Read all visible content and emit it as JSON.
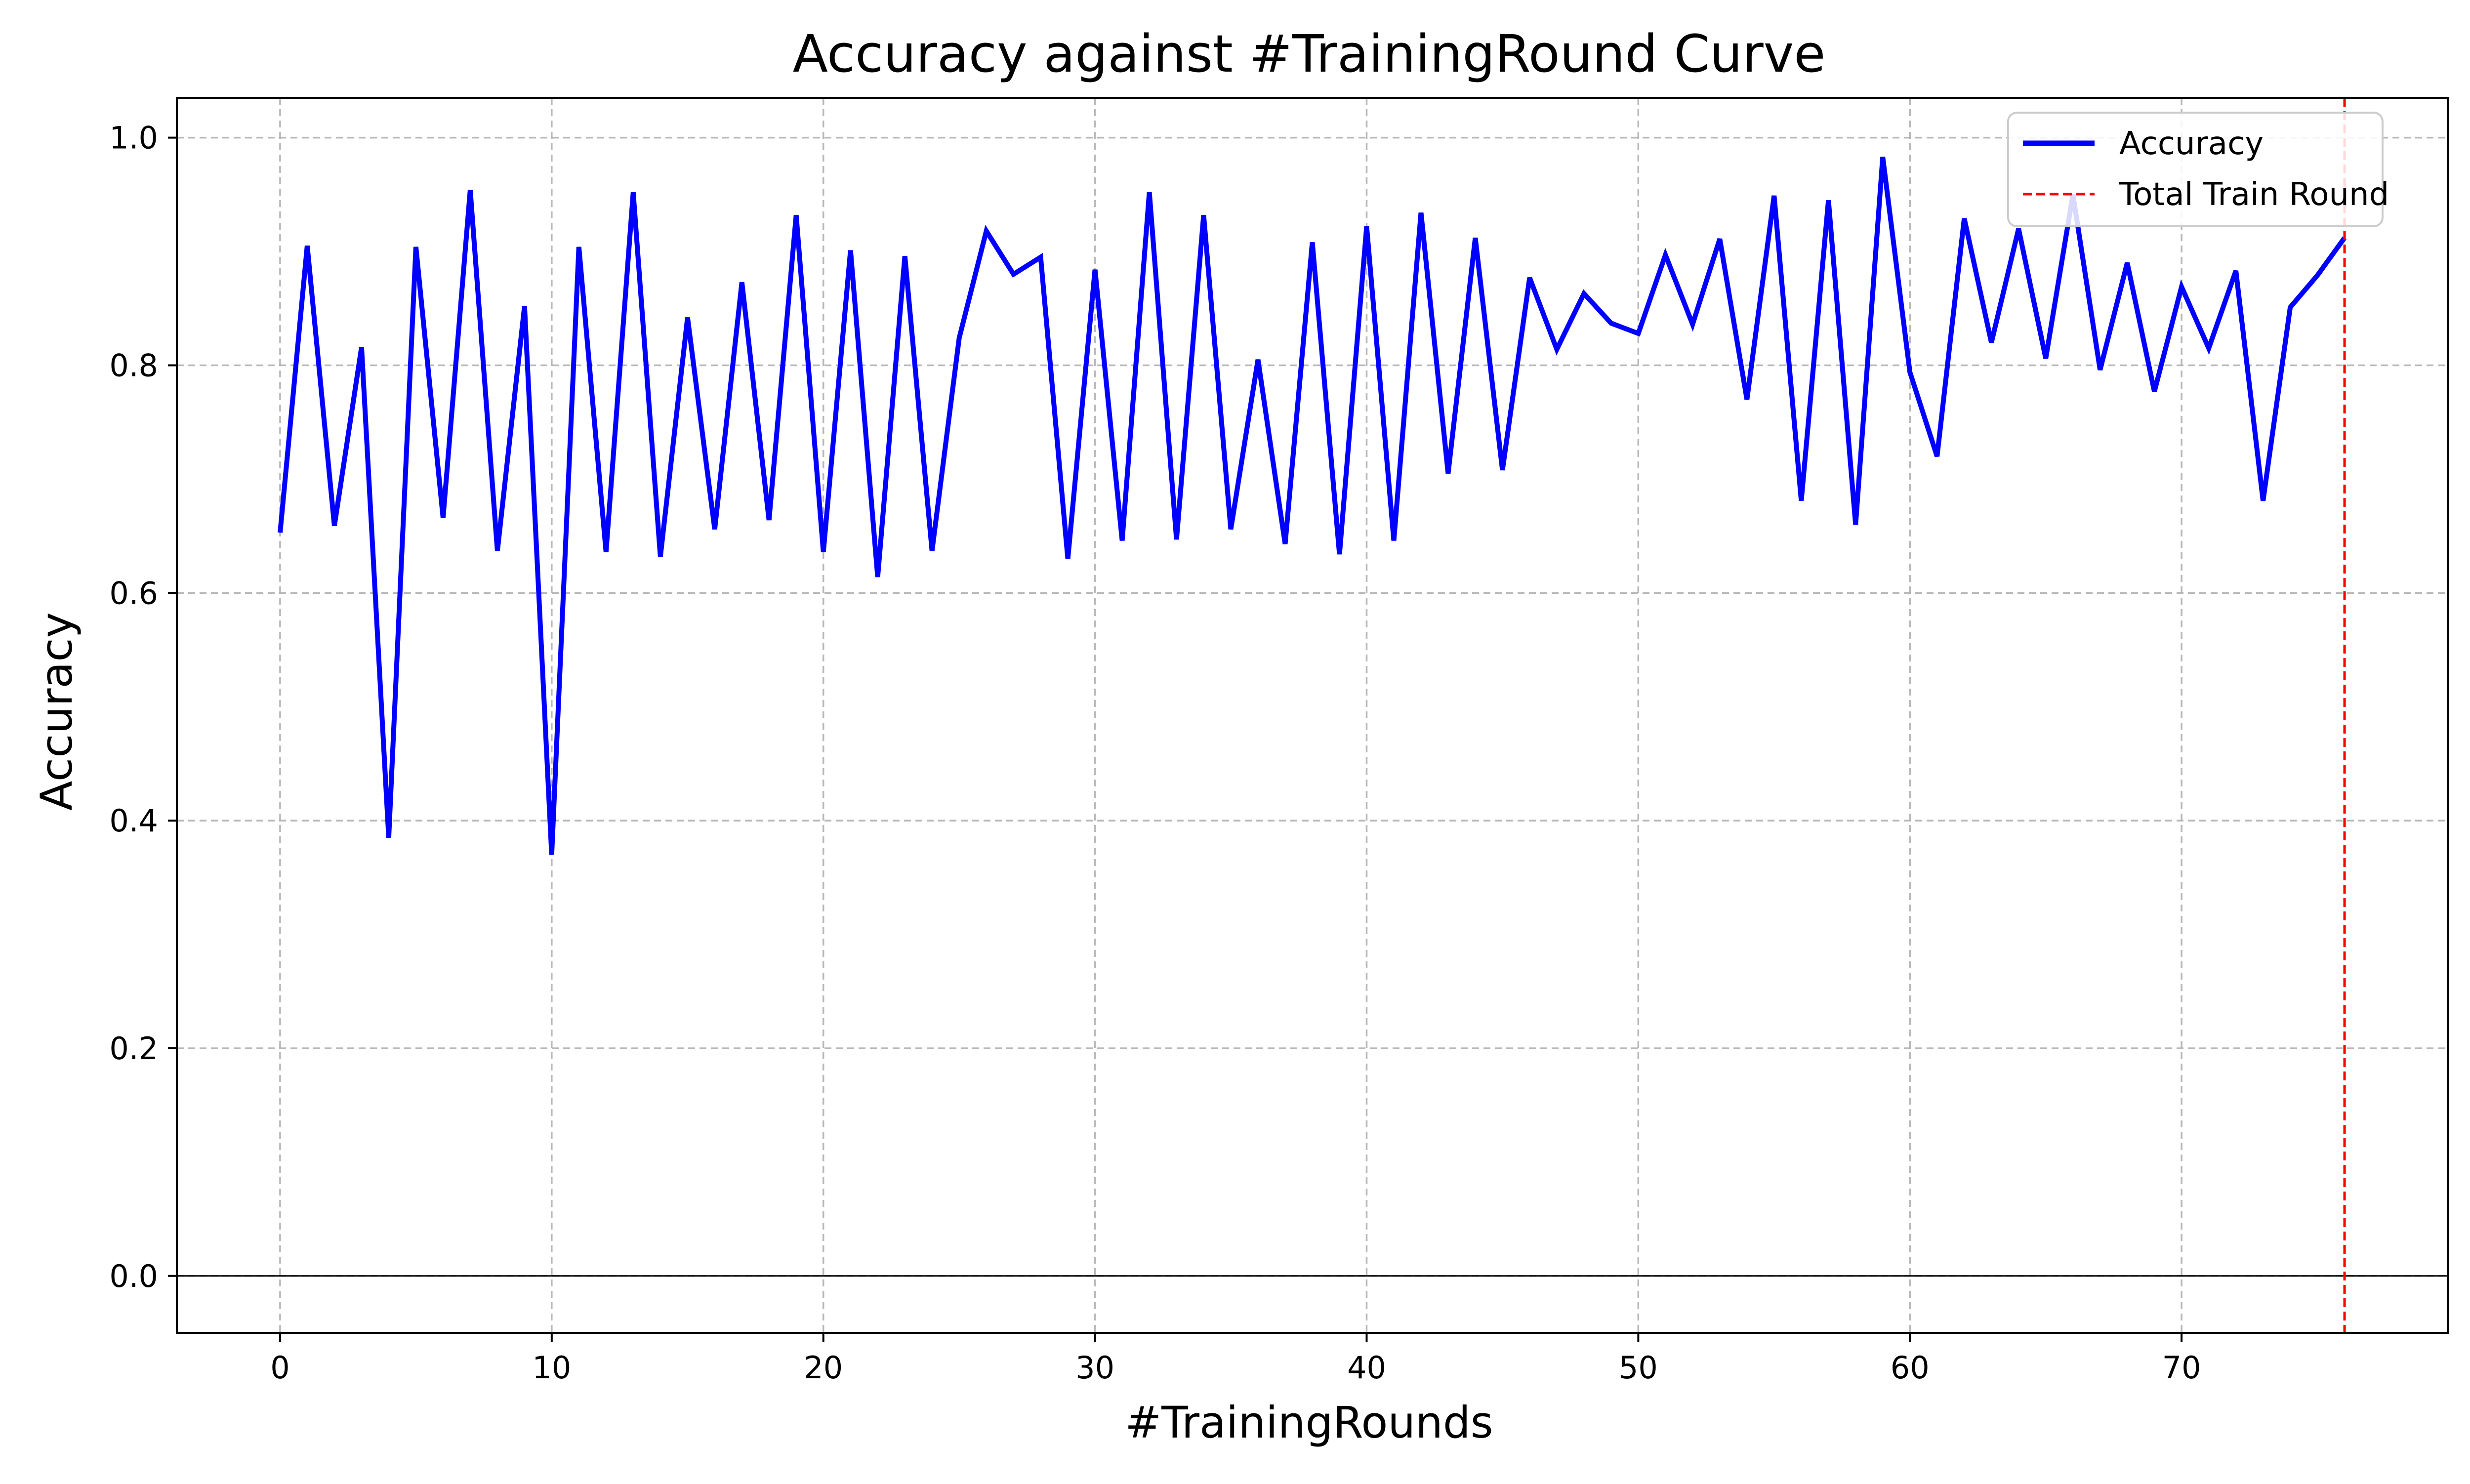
{
  "chart_data": {
    "type": "line",
    "title": "Accuracy against #TrainingRound Curve",
    "xlabel": "#TrainingRounds",
    "ylabel": "Accuracy",
    "xlim": [
      -3.8,
      79.8
    ],
    "ylim": [
      -0.05,
      1.035
    ],
    "xticks": [
      0,
      10,
      20,
      30,
      40,
      50,
      60,
      70
    ],
    "yticks": [
      0.0,
      0.2,
      0.4,
      0.6,
      0.8,
      1.0
    ],
    "grid": true,
    "legend_position": "top-right",
    "colors": {
      "accuracy_line": "#0000ff",
      "total_train_round": "#ff0000",
      "grid": "#b0b0b0",
      "zero_line": "#000000"
    },
    "series": [
      {
        "name": "Accuracy",
        "x": [
          0,
          1,
          2,
          3,
          4,
          5,
          6,
          7,
          8,
          9,
          10,
          11,
          12,
          13,
          14,
          15,
          16,
          17,
          18,
          19,
          20,
          21,
          22,
          23,
          24,
          25,
          26,
          27,
          28,
          29,
          30,
          31,
          32,
          33,
          34,
          35,
          36,
          37,
          38,
          39,
          40,
          41,
          42,
          43,
          44,
          45,
          46,
          47,
          48,
          49,
          50,
          51,
          52,
          53,
          54,
          55,
          56,
          57,
          58,
          59,
          60,
          61,
          62,
          63,
          64,
          65,
          66,
          67,
          68,
          69,
          70,
          71,
          72,
          73,
          74,
          75,
          76
        ],
        "values": [
          0.653,
          0.905,
          0.659,
          0.816,
          0.385,
          0.904,
          0.666,
          0.954,
          0.637,
          0.852,
          0.37,
          0.904,
          0.636,
          0.952,
          0.632,
          0.842,
          0.656,
          0.873,
          0.664,
          0.932,
          0.636,
          0.901,
          0.614,
          0.896,
          0.637,
          0.824,
          0.918,
          0.88,
          0.895,
          0.63,
          0.884,
          0.646,
          0.952,
          0.647,
          0.932,
          0.656,
          0.805,
          0.643,
          0.908,
          0.634,
          0.922,
          0.646,
          0.934,
          0.705,
          0.912,
          0.708,
          0.877,
          0.814,
          0.863,
          0.837,
          0.828,
          0.897,
          0.836,
          0.911,
          0.77,
          0.949,
          0.681,
          0.945,
          0.66,
          0.983,
          0.794,
          0.72,
          0.929,
          0.82,
          0.92,
          0.806,
          0.95,
          0.796,
          0.89,
          0.777,
          0.869,
          0.815,
          0.883,
          0.681,
          0.851,
          0.879,
          0.912
        ]
      }
    ],
    "vertical_line": {
      "name": "Total Train Round",
      "x": 76
    }
  }
}
